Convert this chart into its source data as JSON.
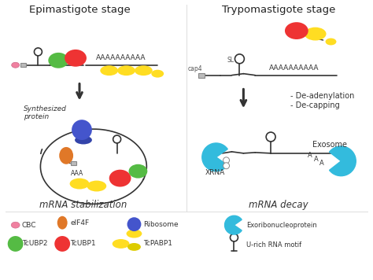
{
  "title_left": "Epimastigote stage",
  "title_right": "Trypomastigote stage",
  "subtitle_left": "mRNA stabilization",
  "subtitle_right": "mRNA decay",
  "arrow_text_right": "- De-adenylation\n- De-capping",
  "exosome_label": "Exosome",
  "xrna_label": "XRNA",
  "synth_label": "Synthesized\nprotein",
  "poly_a_epi": "AAAAAAAAAA",
  "poly_a_tryp": "AAAAAAAAAA",
  "poly_a_small": "AAA",
  "sl_label": "SL",
  "cap4_label": "cap4",
  "colors": {
    "pink": "#F080A0",
    "green": "#55BB44",
    "red": "#EE3333",
    "yellow": "#FFDD22",
    "orange": "#E07828",
    "blue": "#4455CC",
    "cyan": "#33BBDD",
    "gray": "#AAAAAA",
    "darkgray": "#888888",
    "box": "#BBBBBB",
    "black": "#222222",
    "white": "#FFFFFF",
    "line": "#333333"
  },
  "bg_color": "#FFFFFF"
}
